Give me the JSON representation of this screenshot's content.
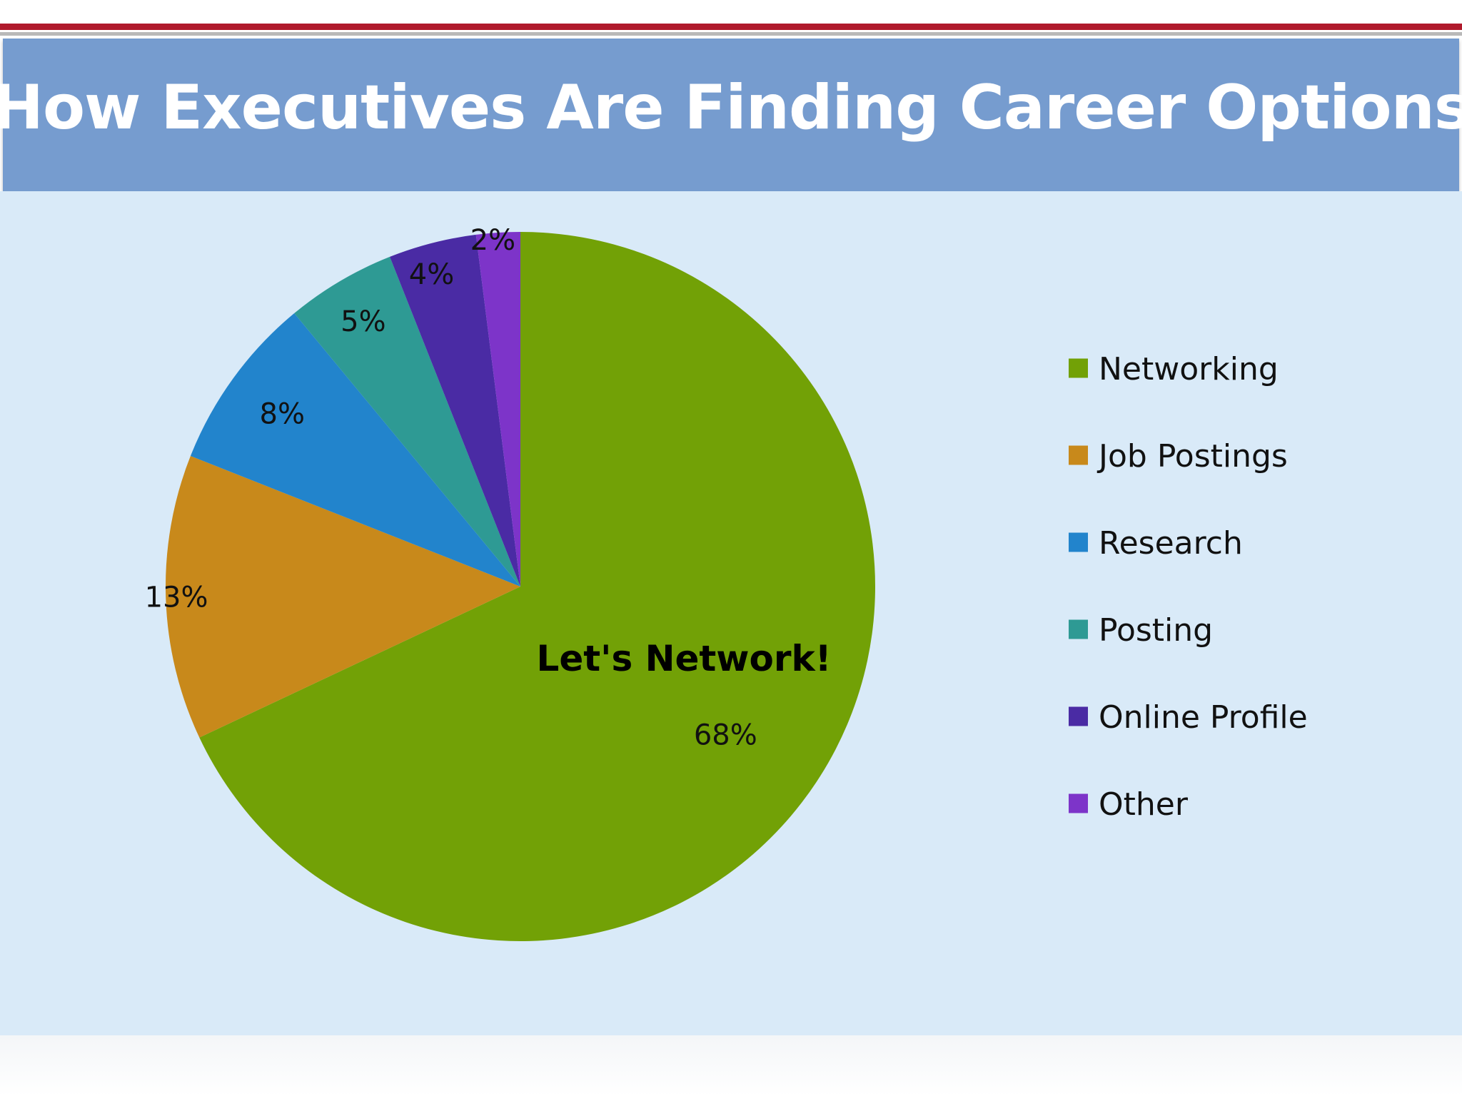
{
  "slide": {
    "title": "How Executives Are Finding Career Options"
  },
  "chart_data": {
    "type": "pie",
    "title": "How Executives Are Finding Career Options",
    "annotation": "Let's Network!",
    "legend_position": "right",
    "categories": [
      "Networking",
      "Job Postings",
      "Research",
      "Posting",
      "Online Profile",
      "Other"
    ],
    "values": [
      68,
      13,
      8,
      5,
      4,
      2
    ],
    "labels": [
      "68%",
      "13%",
      "8%",
      "5%",
      "4%",
      "2%"
    ],
    "colors": [
      "#72a106",
      "#c8891b",
      "#2284cc",
      "#2e9a94",
      "#4a2ba4",
      "#7d34c9"
    ],
    "start": "12 o'clock",
    "direction": "clockwise"
  }
}
